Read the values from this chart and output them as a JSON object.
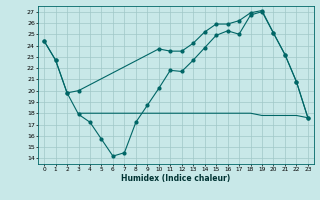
{
  "xlabel": "Humidex (Indice chaleur)",
  "bg_color": "#c8e8e8",
  "grid_color": "#a0c8c8",
  "line_color": "#006666",
  "xlim": [
    -0.5,
    23.5
  ],
  "ylim": [
    13.5,
    27.5
  ],
  "xticks": [
    0,
    1,
    2,
    3,
    4,
    5,
    6,
    7,
    8,
    9,
    10,
    11,
    12,
    13,
    14,
    15,
    16,
    17,
    18,
    19,
    20,
    21,
    22,
    23
  ],
  "yticks": [
    14,
    15,
    16,
    17,
    18,
    19,
    20,
    21,
    22,
    23,
    24,
    25,
    26,
    27
  ],
  "line1_x": [
    0,
    1,
    2,
    3,
    10,
    11,
    12,
    13,
    14,
    15,
    16,
    17,
    18,
    19,
    20,
    21,
    22,
    23
  ],
  "line1_y": [
    24.4,
    22.7,
    19.8,
    20.0,
    23.7,
    23.5,
    23.5,
    24.2,
    25.2,
    25.9,
    25.9,
    26.2,
    26.9,
    27.1,
    25.1,
    23.2,
    20.8,
    17.6
  ],
  "line2_x": [
    0,
    1,
    2,
    3,
    4,
    5,
    6,
    7,
    8,
    9,
    10,
    11,
    12,
    13,
    14,
    15,
    16,
    17,
    18,
    19,
    20,
    21,
    22,
    23
  ],
  "line2_y": [
    24.4,
    22.7,
    19.8,
    17.9,
    17.2,
    15.7,
    14.2,
    14.5,
    17.2,
    18.7,
    20.2,
    21.8,
    21.7,
    22.7,
    23.8,
    24.9,
    25.3,
    25.0,
    26.7,
    27.0,
    25.1,
    23.2,
    20.8,
    17.6
  ],
  "line3_x": [
    3,
    6,
    14,
    18,
    19,
    20,
    21,
    22,
    23
  ],
  "line3_y": [
    18.0,
    18.0,
    18.0,
    18.0,
    17.8,
    17.8,
    17.8,
    17.8,
    17.6
  ]
}
